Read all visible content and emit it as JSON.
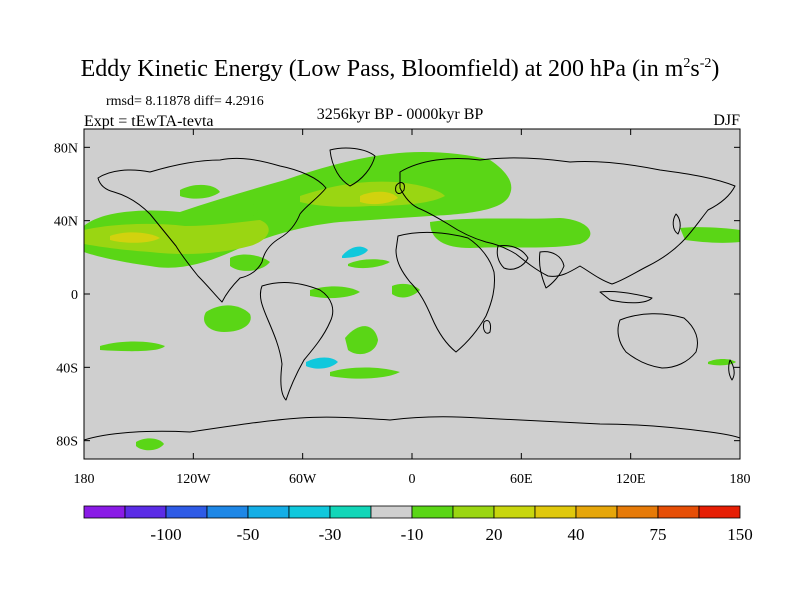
{
  "title": {
    "main": "Eddy Kinetic Energy (Low Pass, Bloomfield) at 200 hPa (in m",
    "sup1": "2",
    "mid": "s",
    "sup2": "-2",
    "end": ")"
  },
  "stats": "rmsd= 8.11878 diff= 4.2916",
  "experiment": "Expt = tEwTA-tevta",
  "period": "3256kyr BP - 0000kyr BP",
  "season": "DJF",
  "chart_data": {
    "type": "heatmap",
    "map_extent": {
      "lon": [
        -180,
        180
      ],
      "lat": [
        -90,
        90
      ]
    },
    "x_ticks": [
      "180",
      "120W",
      "60W",
      "0",
      "60E",
      "120E",
      "180"
    ],
    "x_tick_values": [
      -180,
      -120,
      -60,
      0,
      60,
      120,
      180
    ],
    "y_ticks": [
      "80N",
      "40N",
      "0",
      "40S",
      "80S"
    ],
    "y_tick_values": [
      80,
      40,
      0,
      -40,
      -80
    ],
    "colorbar": {
      "colors": [
        "#8a1be6",
        "#5b2ce6",
        "#2e5be6",
        "#1e87e6",
        "#14aee6",
        "#10c8dc",
        "#12d6b8",
        "#cfcfcf",
        "#5ad616",
        "#9ad612",
        "#c8d60e",
        "#e0c80c",
        "#e6a60a",
        "#e67a08",
        "#e64e06",
        "#e61e04"
      ],
      "labels": [
        "-100",
        "-50",
        "-30",
        "-10",
        "20",
        "40",
        "75",
        "150"
      ]
    },
    "colors": {
      "ocean": "#cfcfcf",
      "green": "#5ad616",
      "yellowgreen": "#9ad612",
      "yellow": "#d2d20e",
      "cyan": "#10c8dc"
    }
  }
}
